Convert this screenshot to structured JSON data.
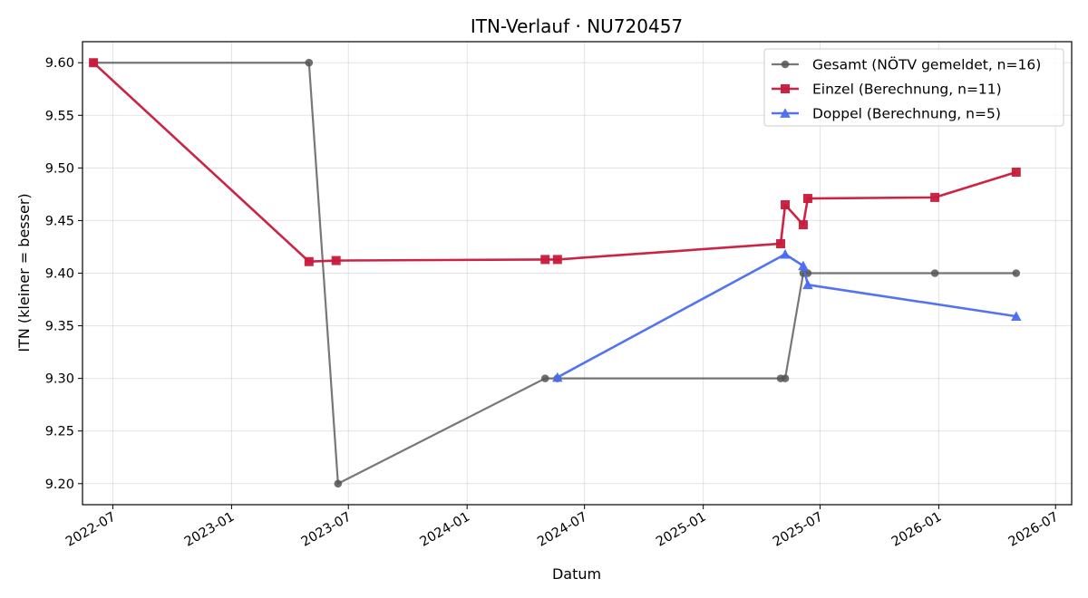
{
  "chart_data": {
    "type": "line",
    "title": "ITN-Verlauf · NU720457",
    "xlabel": "Datum",
    "ylabel": "ITN  (kleiner = besser)",
    "x_axis_type": "date",
    "xlim": [
      "2022-05-15",
      "2026-07-26"
    ],
    "ylim": [
      9.18,
      9.62
    ],
    "x_ticks": [
      {
        "date": "2022-07-01",
        "label": "2022-07"
      },
      {
        "date": "2023-01-01",
        "label": "2023-01"
      },
      {
        "date": "2023-07-01",
        "label": "2023-07"
      },
      {
        "date": "2024-01-01",
        "label": "2024-01"
      },
      {
        "date": "2024-07-01",
        "label": "2024-07"
      },
      {
        "date": "2025-01-01",
        "label": "2025-01"
      },
      {
        "date": "2025-07-01",
        "label": "2025-07"
      },
      {
        "date": "2026-01-01",
        "label": "2026-01"
      },
      {
        "date": "2026-07-01",
        "label": "2026-07"
      }
    ],
    "y_ticks": [
      "9.20",
      "9.25",
      "9.30",
      "9.35",
      "9.40",
      "9.45",
      "9.50",
      "9.55",
      "9.60"
    ],
    "grid": true,
    "legend_position": "top-right",
    "series": [
      {
        "name": "Gesamt (NÖTV gemeldet, n=16)",
        "color": "#555555",
        "marker": "circle",
        "points": [
          {
            "x": "2022-06-01",
            "y": 9.6
          },
          {
            "x": "2023-05-01",
            "y": 9.6
          },
          {
            "x": "2023-06-15",
            "y": 9.2
          },
          {
            "x": "2024-05-01",
            "y": 9.3
          },
          {
            "x": "2024-05-20",
            "y": 9.3
          },
          {
            "x": "2025-05-01",
            "y": 9.3
          },
          {
            "x": "2025-05-08",
            "y": 9.3
          },
          {
            "x": "2025-06-05",
            "y": 9.4
          },
          {
            "x": "2025-06-12",
            "y": 9.4
          },
          {
            "x": "2025-12-26",
            "y": 9.4
          },
          {
            "x": "2026-05-01",
            "y": 9.4
          }
        ]
      },
      {
        "name": "Einzel (Berechnung, n=11)",
        "color": "#c8193c",
        "marker": "square",
        "points": [
          {
            "x": "2022-06-01",
            "y": 9.6
          },
          {
            "x": "2023-05-01",
            "y": 9.411
          },
          {
            "x": "2023-06-12",
            "y": 9.412
          },
          {
            "x": "2024-05-01",
            "y": 9.413
          },
          {
            "x": "2024-05-20",
            "y": 9.413
          },
          {
            "x": "2025-05-01",
            "y": 9.428
          },
          {
            "x": "2025-05-08",
            "y": 9.465
          },
          {
            "x": "2025-06-05",
            "y": 9.446
          },
          {
            "x": "2025-06-12",
            "y": 9.471
          },
          {
            "x": "2025-12-26",
            "y": 9.472
          },
          {
            "x": "2026-05-01",
            "y": 9.496
          }
        ]
      },
      {
        "name": "Doppel (Berechnung, n=5)",
        "color": "#4a6cf0",
        "marker": "triangle",
        "points": [
          {
            "x": "2024-05-20",
            "y": 9.301
          },
          {
            "x": "2025-05-08",
            "y": 9.418
          },
          {
            "x": "2025-06-05",
            "y": 9.407
          },
          {
            "x": "2025-06-12",
            "y": 9.389
          },
          {
            "x": "2026-05-01",
            "y": 9.359
          }
        ]
      }
    ]
  }
}
